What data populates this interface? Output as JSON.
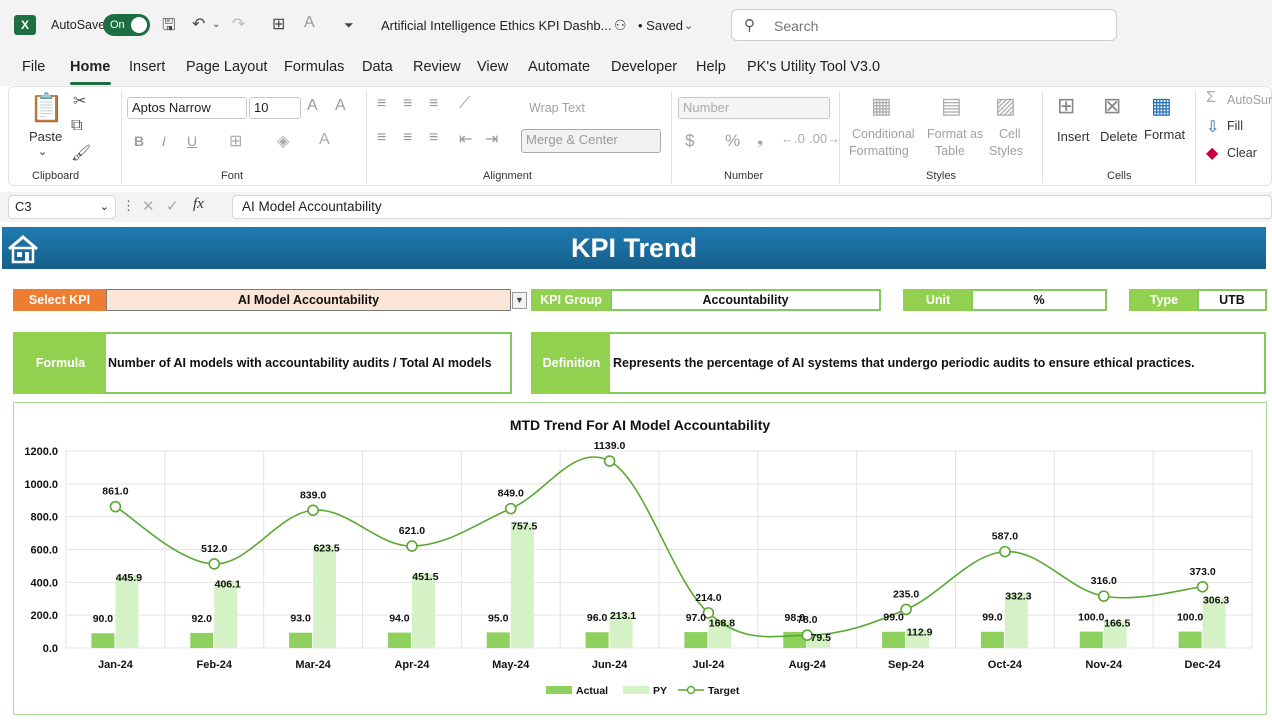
{
  "titlebar": {
    "app_icon": "X",
    "autosave_label": "AutoSave",
    "autosave_state": "On",
    "filename": "Artificial Intelligence Ethics KPI Dashb...",
    "saved_status": "• Saved",
    "search_placeholder": "Search"
  },
  "menu": {
    "items": [
      "File",
      "Home",
      "Insert",
      "Page Layout",
      "Formulas",
      "Data",
      "Review",
      "View",
      "Automate",
      "Developer",
      "Help",
      "PK's Utility Tool V3.0"
    ],
    "active": "Home"
  },
  "ribbon": {
    "clipboard": {
      "paste": "Paste",
      "group": "Clipboard"
    },
    "font": {
      "name": "Aptos Narrow",
      "size": "10",
      "group": "Font",
      "bold": "B",
      "italic": "I",
      "underline": "U"
    },
    "alignment": {
      "wrap": "Wrap Text",
      "merge": "Merge & Center",
      "group": "Alignment"
    },
    "number": {
      "format": "Number",
      "group": "Number",
      "currency": "$",
      "percent": "%"
    },
    "styles": {
      "conditional": "Conditional",
      "conditional2": "Formatting",
      "format_table": "Format as",
      "format_table2": "Table",
      "cell_styles": "Cell",
      "cell_styles2": "Styles",
      "group": "Styles"
    },
    "cells": {
      "insert": "Insert",
      "delete": "Delete",
      "format": "Format",
      "group": "Cells"
    },
    "editing": {
      "autosum": "AutoSur",
      "fill": "Fill",
      "clear": "Clear"
    }
  },
  "formula_bar": {
    "cell_ref": "C3",
    "fx": "fx",
    "content": "AI Model Accountability"
  },
  "dashboard": {
    "title": "KPI Trend",
    "select_kpi_label": "Select KPI",
    "select_kpi_value": "AI Model Accountability",
    "kpi_group_label": "KPI Group",
    "kpi_group_value": "Accountability",
    "unit_label": "Unit",
    "unit_value": "%",
    "type_label": "Type",
    "type_value": "UTB",
    "formula_label": "Formula",
    "formula_value": "Number of AI models with accountability audits / Total AI models",
    "definition_label": "Definition",
    "definition_value": "Represents the percentage of AI systems that undergo periodic audits to ensure ethical practices."
  },
  "colors": {
    "accent_orange": "#ed7d31",
    "accent_green": "#92d050",
    "banner_blue": "#1f7bb0",
    "actual_bar": "#8fd15f",
    "py_bar": "#d4f2c6",
    "target_line": "#5aa832"
  },
  "chart_data": {
    "type": "bar",
    "title": "MTD Trend For AI Model Accountability",
    "categories": [
      "Jan-24",
      "Feb-24",
      "Mar-24",
      "Apr-24",
      "May-24",
      "Jun-24",
      "Jul-24",
      "Aug-24",
      "Sep-24",
      "Oct-24",
      "Nov-24",
      "Dec-24"
    ],
    "series": [
      {
        "name": "Actual",
        "type": "bar",
        "values": [
          90.0,
          92.0,
          93.0,
          94.0,
          95.0,
          96.0,
          97.0,
          98.0,
          99.0,
          99.0,
          100.0,
          100.0
        ]
      },
      {
        "name": "PY",
        "type": "bar",
        "values": [
          445.9,
          406.1,
          623.5,
          451.5,
          757.5,
          213.1,
          168.8,
          79.5,
          112.9,
          332.3,
          166.5,
          306.3
        ]
      },
      {
        "name": "Target",
        "type": "line",
        "values": [
          861.0,
          512.0,
          839.0,
          621.0,
          849.0,
          1139.0,
          214.0,
          78.0,
          235.0,
          587.0,
          316.0,
          373.0
        ]
      }
    ],
    "yticks": [
      "0.0",
      "200.0",
      "400.0",
      "600.0",
      "800.0",
      "1000.0",
      "1200.0"
    ],
    "ylim": [
      0,
      1200
    ],
    "grid": true,
    "legend": "bottom"
  }
}
